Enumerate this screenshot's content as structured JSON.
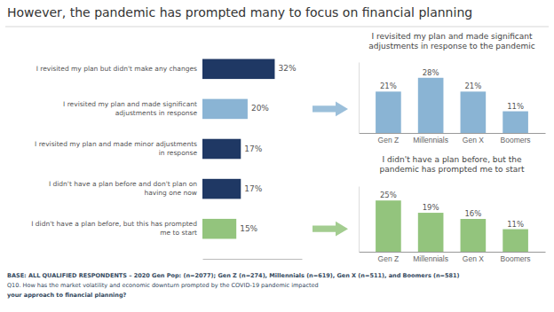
{
  "chart_data": [
    {
      "type": "bar",
      "orientation": "horizontal",
      "title": "However, the pandemic has prompted many to focus on financial planning",
      "categories": [
        "I revisited my plan but didn't make any changes",
        "I revisited my plan and made significant\nadjustments in response",
        "I revisited my plan and made minor adjustments\nin response",
        "I didn't have a plan before and don't plan on\nhaving one now",
        "I didn't have a plan before, but this has prompted\nme to start"
      ],
      "values": [
        32,
        20,
        17,
        17,
        15
      ],
      "colors": [
        "#1f3864",
        "#8ab4d4",
        "#1f3864",
        "#1f3864",
        "#93c47d"
      ],
      "xlim": [
        0,
        44
      ],
      "data_labels": true,
      "value_labels": [
        "32%",
        "20%",
        "17%",
        "17%",
        "15%"
      ],
      "tick_labels": "y",
      "annotations": [
        "BASE: ALL QUALIFIED RESPONDENTS – 2020 Gen Pop: (n=2077); Gen Z (n=274), Millennials (n=619), Gen X (n=511), and Boomers (n=581)",
        "Q10. How has the market volatility and economic downturn prompted by the COVID-19 pandemic impacted ",
        "your approach to financial planning?"
      ]
    },
    {
      "type": "bar",
      "title": "I revisited my plan and made significant\nadjustments in response to the pandemic",
      "categories": [
        "Gen Z",
        "Millennials",
        "Gen X",
        "Boomers"
      ],
      "values": [
        21,
        28,
        21,
        11
      ],
      "color": "#8ab4d4",
      "ylim": [
        0,
        36
      ],
      "data_labels": true,
      "value_labels": [
        "21%",
        "28%",
        "21%",
        "11%"
      ],
      "tick_labels": "x"
    },
    {
      "type": "bar",
      "title": "I didn't have a plan before, but the\npandemic has prompted me to start",
      "categories": [
        "Gen Z",
        "Millennials",
        "Gen X",
        "Boomers"
      ],
      "values": [
        25,
        19,
        16,
        11
      ],
      "color": "#93c47d",
      "ylim": [
        0,
        32
      ],
      "data_labels": true,
      "value_labels": [
        "25%",
        "19%",
        "16%",
        "11%"
      ],
      "tick_labels": "x"
    }
  ]
}
